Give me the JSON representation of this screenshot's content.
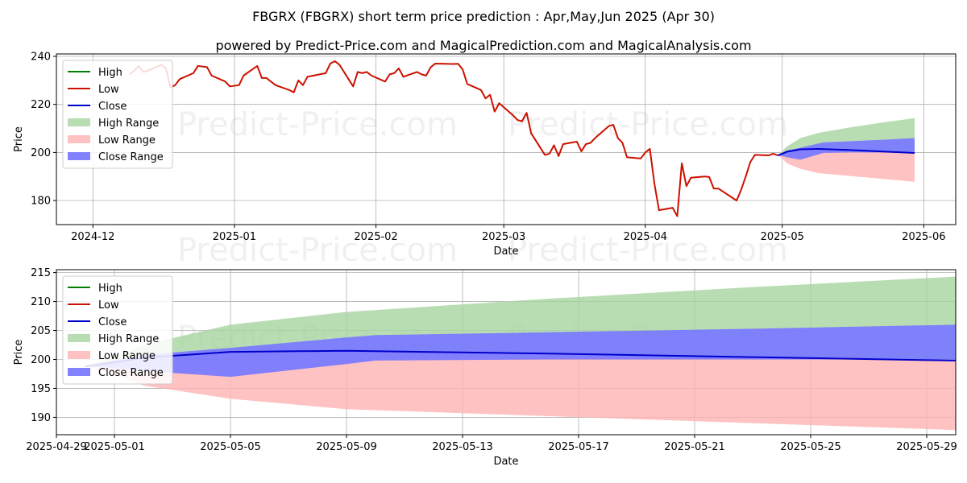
{
  "title_line1": "FBGRX (FBGRX) short term price prediction : Apr,May,Jun 2025 (Apr 30)",
  "title_line2": "powered by Predict-Price.com and MagicalPrediction.com and MagicalAnalysis.com",
  "watermark": "Predict-Price.com",
  "colors": {
    "high": "#008000",
    "low": "#cc1100",
    "close": "#0000cc",
    "high_range": "#a8d5a0",
    "low_range": "#ffb3b3",
    "close_range": "#7b7bff"
  },
  "chart_data": [
    {
      "type": "line",
      "xlabel": "Date",
      "ylabel": "Price",
      "xlim": [
        "2024-11-23",
        "2025-06-08"
      ],
      "ylim": [
        170,
        241
      ],
      "yticks": [
        180,
        200,
        220,
        240
      ],
      "xticks": [
        "2024-12-01",
        "2025-01-01",
        "2025-02-01",
        "2025-03-01",
        "2025-04-01",
        "2025-05-01",
        "2025-06-01"
      ],
      "xtick_labels": [
        "2024-12",
        "2025-01",
        "2025-02",
        "2025-03",
        "2025-04",
        "2025-05",
        "2025-06"
      ],
      "grid": true,
      "legend": {
        "placement": "top-left",
        "entries": [
          "High",
          "Low",
          "Close",
          "High Range",
          "Low Range",
          "Close Range"
        ]
      },
      "series": [
        {
          "name": "Low",
          "x": [
            "2024-12-09",
            "2024-12-10",
            "2024-12-11",
            "2024-12-12",
            "2024-12-13",
            "2024-12-16",
            "2024-12-17",
            "2024-12-18",
            "2024-12-19",
            "2024-12-20",
            "2024-12-23",
            "2024-12-24",
            "2024-12-26",
            "2024-12-27",
            "2024-12-30",
            "2024-12-31",
            "2025-01-02",
            "2025-01-03",
            "2025-01-06",
            "2025-01-07",
            "2025-01-08",
            "2025-01-10",
            "2025-01-13",
            "2025-01-14",
            "2025-01-15",
            "2025-01-16",
            "2025-01-17",
            "2025-01-21",
            "2025-01-22",
            "2025-01-23",
            "2025-01-24",
            "2025-01-27",
            "2025-01-28",
            "2025-01-29",
            "2025-01-30",
            "2025-01-31",
            "2025-02-03",
            "2025-02-04",
            "2025-02-05",
            "2025-02-06",
            "2025-02-07",
            "2025-02-10",
            "2025-02-11",
            "2025-02-12",
            "2025-02-13",
            "2025-02-14",
            "2025-02-18",
            "2025-02-19",
            "2025-02-20",
            "2025-02-21",
            "2025-02-24",
            "2025-02-25",
            "2025-02-26",
            "2025-02-27",
            "2025-02-28",
            "2025-03-03",
            "2025-03-04",
            "2025-03-05",
            "2025-03-06",
            "2025-03-07",
            "2025-03-10",
            "2025-03-11",
            "2025-03-12",
            "2025-03-13",
            "2025-03-14",
            "2025-03-17",
            "2025-03-18",
            "2025-03-19",
            "2025-03-20",
            "2025-03-21",
            "2025-03-24",
            "2025-03-25",
            "2025-03-26",
            "2025-03-27",
            "2025-03-28",
            "2025-03-31",
            "2025-04-01",
            "2025-04-02",
            "2025-04-03",
            "2025-04-04",
            "2025-04-07",
            "2025-04-08",
            "2025-04-09",
            "2025-04-10",
            "2025-04-11",
            "2025-04-14",
            "2025-04-15",
            "2025-04-16",
            "2025-04-17",
            "2025-04-21",
            "2025-04-22",
            "2025-04-23",
            "2025-04-24",
            "2025-04-25",
            "2025-04-28",
            "2025-04-29",
            "2025-04-30"
          ],
          "values": [
            232.5,
            234.0,
            236.0,
            233.5,
            234.0,
            236.5,
            235.0,
            227.0,
            228.0,
            230.5,
            233.0,
            236.0,
            235.5,
            232.0,
            229.5,
            227.5,
            228.0,
            232.0,
            236.0,
            231.0,
            231.0,
            228.0,
            226.0,
            225.0,
            230.0,
            228.0,
            231.5,
            233.0,
            237.0,
            238.0,
            236.5,
            227.5,
            233.5,
            233.0,
            233.5,
            232.0,
            229.5,
            232.5,
            233.0,
            235.0,
            231.5,
            233.5,
            232.5,
            232.0,
            235.5,
            237.0,
            236.8,
            236.9,
            234.5,
            228.5,
            226.0,
            222.5,
            224.0,
            217.0,
            220.5,
            215.5,
            213.5,
            213.0,
            216.5,
            208.0,
            199.0,
            199.5,
            203.0,
            198.5,
            203.5,
            204.5,
            200.5,
            203.5,
            204.0,
            206.0,
            211.0,
            211.5,
            206.0,
            204.0,
            198.0,
            197.5,
            200.0,
            201.5,
            187.0,
            176.0,
            177.0,
            173.5,
            195.5,
            186.0,
            189.5,
            190.0,
            189.8,
            185.0,
            185.0,
            180.0,
            184.5,
            190.0,
            196.0,
            199.0,
            198.8,
            199.5,
            198.8
          ]
        },
        {
          "name": "Close",
          "x": [
            "2025-04-30",
            "2025-05-01",
            "2025-05-02",
            "2025-05-05",
            "2025-05-09",
            "2025-05-16",
            "2025-05-23",
            "2025-05-30"
          ],
          "values": [
            198.8,
            199.5,
            200.3,
            201.3,
            201.5,
            201.0,
            200.4,
            199.8
          ]
        }
      ],
      "ranges": [
        {
          "name": "High Range",
          "x": [
            "2025-04-30",
            "2025-05-01",
            "2025-05-02",
            "2025-05-05",
            "2025-05-09",
            "2025-05-16",
            "2025-05-23",
            "2025-05-30"
          ],
          "lower": [
            198.8,
            199.5,
            200.3,
            201.3,
            201.5,
            201.0,
            200.4,
            199.8
          ],
          "upper": [
            198.8,
            200.5,
            202.5,
            206.0,
            208.2,
            210.5,
            212.5,
            214.3
          ]
        },
        {
          "name": "Low Range",
          "x": [
            "2025-04-30",
            "2025-05-01",
            "2025-05-02",
            "2025-05-05",
            "2025-05-09",
            "2025-05-16",
            "2025-05-23",
            "2025-05-30"
          ],
          "lower": [
            198.8,
            197.5,
            195.5,
            193.2,
            191.4,
            190.2,
            189.0,
            187.8
          ],
          "upper": [
            198.8,
            199.5,
            200.3,
            201.3,
            201.5,
            201.0,
            200.4,
            199.8
          ]
        },
        {
          "name": "Close Range",
          "x": [
            "2025-04-30",
            "2025-05-01",
            "2025-05-02",
            "2025-05-05",
            "2025-05-09",
            "2025-05-10",
            "2025-05-16",
            "2025-05-23",
            "2025-05-30"
          ],
          "lower": [
            198.8,
            198.5,
            198.0,
            197.0,
            199.2,
            199.8,
            200.0,
            200.0,
            200.0
          ],
          "upper": [
            198.8,
            199.8,
            200.8,
            202.0,
            203.8,
            204.2,
            204.7,
            205.3,
            206.0
          ]
        }
      ]
    },
    {
      "type": "line",
      "xlabel": "Date",
      "ylabel": "Price",
      "xlim": [
        "2025-04-29",
        "2025-05-30"
      ],
      "ylim": [
        187,
        215.5
      ],
      "yticks": [
        190,
        195,
        200,
        205,
        210,
        215
      ],
      "xticks": [
        "2025-04-29",
        "2025-05-01",
        "2025-05-05",
        "2025-05-09",
        "2025-05-13",
        "2025-05-17",
        "2025-05-21",
        "2025-05-25",
        "2025-05-29"
      ],
      "xtick_labels": [
        "2025-04-29",
        "2025-05-01",
        "2025-05-05",
        "2025-05-09",
        "2025-05-13",
        "2025-05-17",
        "2025-05-21",
        "2025-05-25",
        "2025-05-29"
      ],
      "grid": true,
      "legend": {
        "placement": "top-left",
        "entries": [
          "High",
          "Low",
          "Close",
          "High Range",
          "Low Range",
          "Close Range"
        ]
      },
      "series": [
        {
          "name": "Close",
          "x": [
            "2025-04-30",
            "2025-05-01",
            "2025-05-02",
            "2025-05-05",
            "2025-05-09",
            "2025-05-16",
            "2025-05-23",
            "2025-05-30"
          ],
          "values": [
            198.8,
            199.5,
            200.3,
            201.3,
            201.5,
            201.0,
            200.4,
            199.8
          ]
        }
      ],
      "ranges": [
        {
          "name": "High Range",
          "x": [
            "2025-04-30",
            "2025-05-01",
            "2025-05-02",
            "2025-05-05",
            "2025-05-09",
            "2025-05-16",
            "2025-05-23",
            "2025-05-30"
          ],
          "lower": [
            198.8,
            199.5,
            200.3,
            201.3,
            201.5,
            201.0,
            200.4,
            199.8
          ],
          "upper": [
            198.8,
            200.5,
            202.5,
            206.0,
            208.2,
            210.5,
            212.5,
            214.3
          ]
        },
        {
          "name": "Low Range",
          "x": [
            "2025-04-30",
            "2025-05-01",
            "2025-05-02",
            "2025-05-05",
            "2025-05-09",
            "2025-05-16",
            "2025-05-23",
            "2025-05-30"
          ],
          "lower": [
            198.8,
            197.5,
            195.5,
            193.2,
            191.4,
            190.2,
            189.0,
            187.8
          ],
          "upper": [
            198.8,
            199.5,
            200.3,
            201.3,
            201.5,
            201.0,
            200.4,
            199.8
          ]
        },
        {
          "name": "Close Range",
          "x": [
            "2025-04-30",
            "2025-05-01",
            "2025-05-02",
            "2025-05-05",
            "2025-05-09",
            "2025-05-10",
            "2025-05-16",
            "2025-05-23",
            "2025-05-30"
          ],
          "lower": [
            198.8,
            198.5,
            198.0,
            197.0,
            199.2,
            199.8,
            200.0,
            200.0,
            200.0
          ],
          "upper": [
            198.8,
            199.8,
            200.8,
            202.0,
            203.8,
            204.2,
            204.7,
            205.3,
            206.0
          ]
        }
      ]
    }
  ]
}
